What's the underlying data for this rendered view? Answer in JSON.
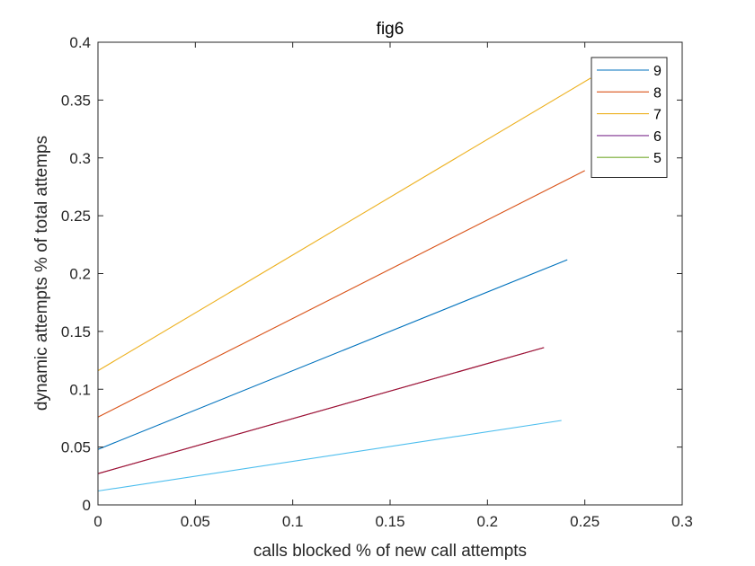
{
  "chart_data": {
    "type": "line",
    "title": "fig6",
    "xlabel": "calls blocked % of new call attempts",
    "ylabel": "dynamic attempts % of total attemps",
    "xlim": [
      0,
      0.3
    ],
    "ylim": [
      0,
      0.4
    ],
    "xticks": [
      "0",
      "0.05",
      "0.1",
      "0.15",
      "0.2",
      "0.25",
      "0.3"
    ],
    "yticks": [
      "0",
      "0.05",
      "0.1",
      "0.15",
      "0.2",
      "0.25",
      "0.3",
      "0.35",
      "0.4"
    ],
    "grid": false,
    "legend_position": "top-right",
    "legend": [
      "9",
      "8",
      "7",
      "6",
      "5"
    ],
    "series": [
      {
        "name": "9",
        "color": "#0072BD",
        "x": [
          0,
          0.241
        ],
        "y": [
          0.048,
          0.212
        ]
      },
      {
        "name": "8",
        "color": "#D95319",
        "x": [
          0,
          0.25
        ],
        "y": [
          0.076,
          0.289
        ]
      },
      {
        "name": "7",
        "color": "#EDB120",
        "x": [
          0,
          0.253
        ],
        "y": [
          0.116,
          0.369
        ]
      },
      {
        "name": "6",
        "color": "#7E2F8E",
        "x": [
          0,
          0.229
        ],
        "y": [
          0.027,
          0.136
        ]
      },
      {
        "name": "5",
        "color": "#77AC30",
        "x": [],
        "y": []
      },
      {
        "color": "#A2142F",
        "x": [
          0,
          0.229
        ],
        "y": [
          0.027,
          0.136
        ]
      },
      {
        "color": "#4DBEEE",
        "x": [
          0,
          0.238
        ],
        "y": [
          0.012,
          0.073
        ]
      }
    ]
  }
}
